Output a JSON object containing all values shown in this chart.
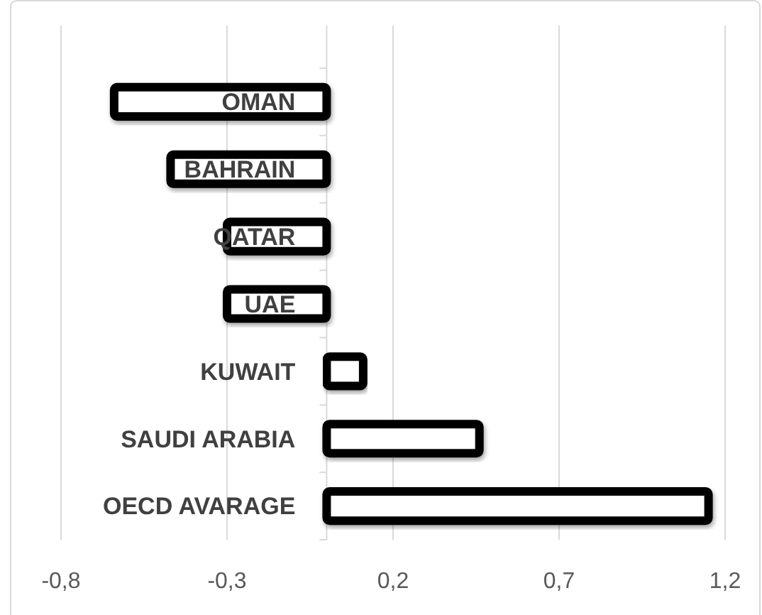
{
  "chart_data": {
    "type": "bar",
    "orientation": "horizontal",
    "categories": [
      "OMAN",
      "BAHRAIN",
      "QATAR",
      "UAE",
      "KUWAIT",
      "SAUDI ARABIA",
      "OECD AVARAGE"
    ],
    "values": [
      -0.64,
      -0.47,
      -0.3,
      -0.3,
      0.11,
      0.46,
      1.15
    ],
    "color": "#000000",
    "xlim": [
      -0.8,
      1.2
    ],
    "xticks": [
      {
        "value": -0.8,
        "label": "-0,8"
      },
      {
        "value": -0.3,
        "label": "-0,3"
      },
      {
        "value": 0.2,
        "label": "0,2"
      },
      {
        "value": 0.7,
        "label": "0,7"
      },
      {
        "value": 1.2,
        "label": "1,2"
      }
    ],
    "grid": "x"
  }
}
